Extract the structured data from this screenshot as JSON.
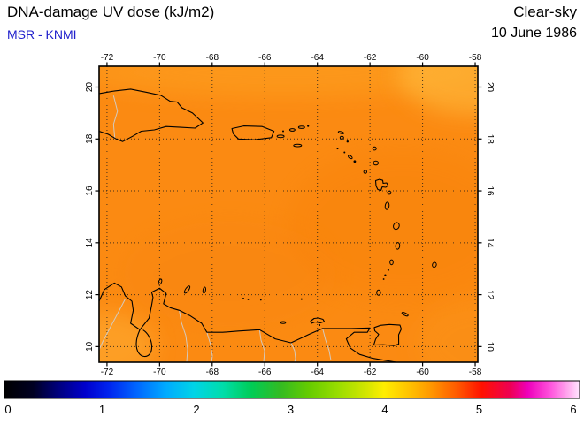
{
  "header": {
    "title": "DNA-damage UV dose (kJ/m2)",
    "source": "MSR - KNMI",
    "condition": "Clear-sky",
    "date": "10 June 1986"
  },
  "colorbar": {
    "min": 0,
    "max": 6,
    "ticks": [
      0,
      1,
      2,
      3,
      4,
      5,
      6
    ],
    "stops": [
      {
        "p": 0.0,
        "c": "#000000"
      },
      {
        "p": 0.05,
        "c": "#000022"
      },
      {
        "p": 0.09,
        "c": "#000077"
      },
      {
        "p": 0.14,
        "c": "#0000cc"
      },
      {
        "p": 0.18,
        "c": "#0022ee"
      },
      {
        "p": 0.23,
        "c": "#0066ff"
      },
      {
        "p": 0.28,
        "c": "#00aaff"
      },
      {
        "p": 0.33,
        "c": "#00d4e6"
      },
      {
        "p": 0.38,
        "c": "#00ddaa"
      },
      {
        "p": 0.43,
        "c": "#00cc55"
      },
      {
        "p": 0.48,
        "c": "#33bb22"
      },
      {
        "p": 0.53,
        "c": "#66cc00"
      },
      {
        "p": 0.58,
        "c": "#99dd00"
      },
      {
        "p": 0.63,
        "c": "#d4e600"
      },
      {
        "p": 0.66,
        "c": "#ffee00"
      },
      {
        "p": 0.71,
        "c": "#ffbb00"
      },
      {
        "p": 0.74,
        "c": "#ff9900"
      },
      {
        "p": 0.79,
        "c": "#ff5500"
      },
      {
        "p": 0.83,
        "c": "#ff1100"
      },
      {
        "p": 0.88,
        "c": "#ee0055"
      },
      {
        "p": 0.91,
        "c": "#ee00bb"
      },
      {
        "p": 0.95,
        "c": "#ff55dd"
      },
      {
        "p": 0.98,
        "c": "#ffaaee"
      },
      {
        "p": 1.0,
        "c": "#ffe6ff"
      }
    ]
  },
  "chart_data": {
    "type": "heatmap",
    "title": "DNA-damage UV dose (kJ/m2)",
    "condition": "Clear-sky",
    "date": "10 June 1986",
    "source": "MSR - KNMI",
    "x": {
      "axis": "longitude",
      "range": [
        -72.3,
        -57.9
      ],
      "ticks": [
        -72,
        -70,
        -68,
        -66,
        -64,
        -62,
        -60,
        -58
      ]
    },
    "y": {
      "axis": "latitude",
      "range": [
        9.4,
        20.8
      ],
      "ticks": [
        20,
        18,
        16,
        14,
        12,
        10
      ]
    },
    "colorbar_range": [
      0,
      6
    ],
    "colorbar_ticks": [
      0,
      1,
      2,
      3,
      4,
      5,
      6
    ],
    "units": "kJ/m2",
    "field_summary": {
      "approx_mean": 4.3,
      "approx_min": 4.0,
      "approx_max": 4.7,
      "description": "Nearly uniform orange field (~4.2-4.5 kJ/m2) over the whole Caribbean domain; slightly higher values (lighter yellow-orange, ~4.5-4.7) along the northern edge, in the northeast corner and near the Guajira peninsula in the southwest corner."
    },
    "region": "Caribbean Sea: eastern Hispaniola, Puerto Rico, Virgin Islands, Lesser Antilles arc, Barbados, Trinidad and Tobago, Margarita, ABC islands, northern coast of Venezuela and Colombia",
    "grid": {
      "on": true,
      "style": "dotted",
      "lon_step": 2,
      "lat_step": 2
    }
  }
}
